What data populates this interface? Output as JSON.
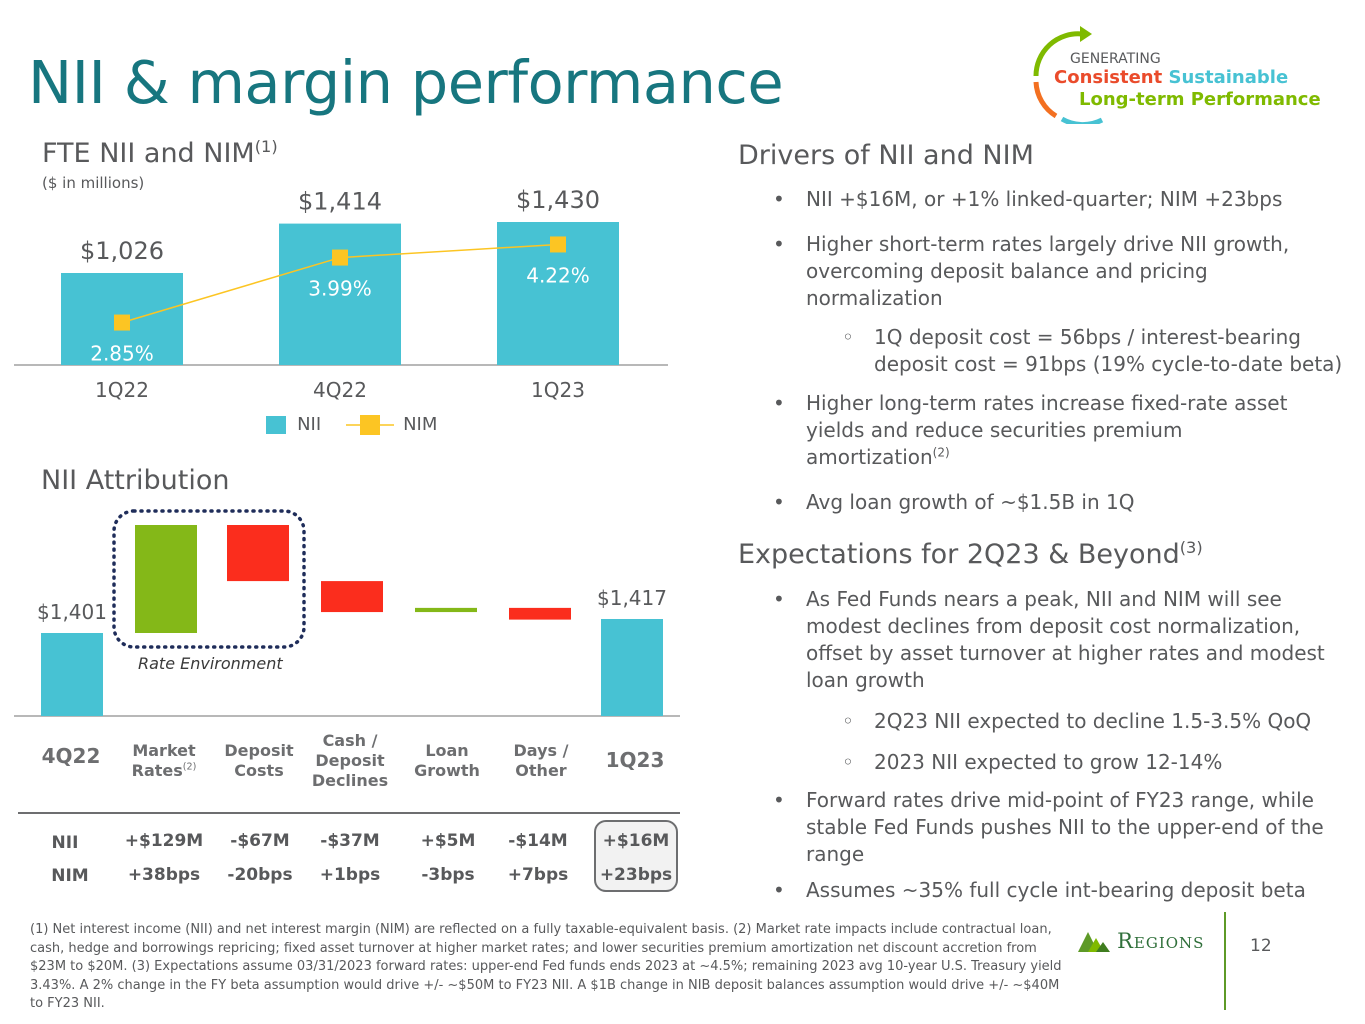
{
  "title": "NII & margin performance",
  "logo": {
    "line1": "GENERATING",
    "word_consistent": "Consistent",
    "word_sustainable": "Sustainable",
    "line3": "Long-term Performance"
  },
  "nii_chart": {
    "heading": "FTE NII and NIM",
    "heading_sup": "(1)",
    "units": "($ in millions)",
    "legend_nii": "NII",
    "legend_nim": "NIM"
  },
  "chart_data": [
    {
      "type": "bar",
      "title": "FTE NII and NIM",
      "categories": [
        "1Q22",
        "4Q22",
        "1Q23"
      ],
      "series": [
        {
          "name": "NII",
          "values": [
            1026,
            1414,
            1430
          ],
          "labels": [
            "$1,026",
            "$1,414",
            "$1,430"
          ]
        },
        {
          "name": "NIM",
          "type": "line",
          "values": [
            2.85,
            3.99,
            4.22
          ],
          "labels": [
            "2.85%",
            "3.99%",
            "4.22%"
          ]
        }
      ],
      "colors": {
        "nii": "#47c2d3",
        "nim": "#fcc523"
      }
    },
    {
      "type": "bar",
      "title": "NII Attribution",
      "categories": [
        "4Q22",
        "Market Rates",
        "Deposit Costs",
        "Cash / Deposit Declines",
        "Loan Growth",
        "Days / Other",
        "1Q23"
      ],
      "values": [
        1401,
        129,
        -67,
        -37,
        5,
        -14,
        1417
      ],
      "start_label": "$1,401",
      "end_label": "$1,417"
    }
  ],
  "attribution": {
    "heading": "NII Attribution",
    "bracket_label": "Rate Environment",
    "cat_4q22": "4Q22",
    "cat_market_1": "Market",
    "cat_market_2": "Rates",
    "cat_market_sup": "(2)",
    "cat_deposit_1": "Deposit",
    "cat_deposit_2": "Costs",
    "cat_cash_1": "Cash /",
    "cat_cash_2": "Deposit",
    "cat_cash_3": "Declines",
    "cat_loan_1": "Loan",
    "cat_loan_2": "Growth",
    "cat_days_1": "Days /",
    "cat_days_2": "Other",
    "cat_1q23": "1Q23",
    "row_nii_label": "NII",
    "row_nim_label": "NIM",
    "nii_values": [
      "+$129M",
      "-$67M",
      "-$37M",
      "+$5M",
      "-$14M",
      "+$16M"
    ],
    "nim_values": [
      "+38bps",
      "-20bps",
      "+1bps",
      "-3bps",
      "+7bps",
      "+23bps"
    ]
  },
  "drivers": {
    "heading": "Drivers of NII and NIM",
    "b1": "NII +$16M, or +1% linked-quarter; NIM +23bps",
    "b2": "Higher short-term rates largely drive NII growth, overcoming deposit balance and pricing normalization",
    "b2a": "1Q deposit cost = 56bps / interest-bearing deposit cost = 91bps (19% cycle-to-date beta)",
    "b3": "Higher long-term rates increase fixed-rate asset yields and reduce securities premium amortization",
    "b3_sup": "(2)",
    "b4": "Avg loan growth of ~$1.5B in 1Q"
  },
  "expectations": {
    "heading": "Expectations for 2Q23 & Beyond",
    "heading_sup": "(3)",
    "b1": "As Fed Funds nears a peak, NII and NIM will see modest declines from deposit cost normalization, offset by asset turnover at higher rates and modest loan growth",
    "b1a": "2Q23 NII expected to decline 1.5-3.5% QoQ",
    "b1b": "2023 NII expected to grow 12-14%",
    "b2": "Forward rates drive mid-point of FY23 range, while stable Fed Funds pushes NII to the upper-end of the range",
    "b3": "Assumes ~35% full cycle int-bearing deposit beta"
  },
  "footnote": "(1) Net interest income (NII) and net interest margin (NIM) are reflected on a fully taxable-equivalent basis. (2) Market rate impacts include contractual loan, cash, hedge and borrowings repricing; fixed asset turnover at higher market rates; and lower securities premium amortization net discount accretion from $23M to $20M. (3) Expectations assume 03/31/2023 forward rates: upper-end Fed funds ends 2023 at ~4.5%; remaining 2023 avg 10-year U.S. Treasury yield 3.43%. A 2% change in the FY beta assumption would drive +/- ~$50M to FY23 NII. A $1B change in NIB deposit balances assumption would drive +/- ~$40M to FY23 NII.",
  "brand": "Regions",
  "page_number": "12"
}
